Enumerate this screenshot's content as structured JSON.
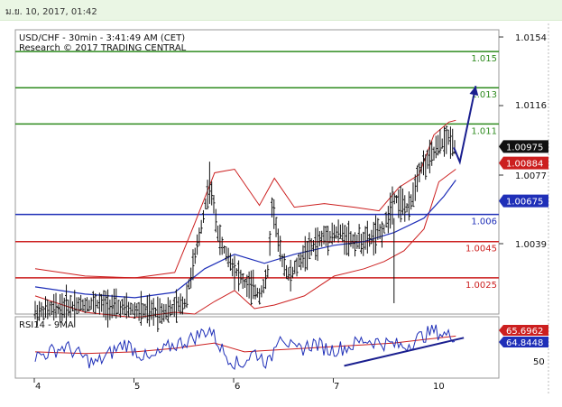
{
  "header": {
    "date_text": "ม.ย. 10, 2017, 01:42"
  },
  "chart_data": [
    {
      "type": "ohlc",
      "title": "USD/CHF - 30min - 3:41:49 AM (CET)",
      "subtitle": "Research © 2017 TRADING CENTRAL",
      "xlabel": "",
      "ylabel": "",
      "ylim": [
        1.0005,
        1.0162
      ],
      "y_ticks": [
        "1.0154",
        "1.0116",
        "1.0077",
        "1.0039"
      ],
      "x_ticks": [
        {
          "label": "4",
          "day": 4
        },
        {
          "label": "5",
          "day": 5
        },
        {
          "label": "6",
          "day": 6
        },
        {
          "label": "7",
          "day": 7
        },
        {
          "label": "10",
          "day": 10
        }
      ],
      "price_path": [
        [
          4.0,
          1.0006
        ],
        [
          4.3,
          1.0009
        ],
        [
          4.6,
          1.0011
        ],
        [
          4.9,
          1.0008
        ],
        [
          5.15,
          1.0006
        ],
        [
          5.35,
          1.0007
        ],
        [
          5.5,
          1.0011
        ],
        [
          5.62,
          1.004
        ],
        [
          5.75,
          1.0078
        ],
        [
          5.85,
          1.0045
        ],
        [
          6.0,
          1.003
        ],
        [
          6.1,
          1.0022
        ],
        [
          6.25,
          1.0016
        ],
        [
          6.33,
          1.0025
        ],
        [
          6.38,
          1.0068
        ],
        [
          6.45,
          1.004
        ],
        [
          6.55,
          1.0025
        ],
        [
          6.7,
          1.0038
        ],
        [
          6.9,
          1.0048
        ],
        [
          7.05,
          1.005
        ],
        [
          7.2,
          1.0045
        ],
        [
          7.35,
          1.0046
        ],
        [
          7.5,
          1.0052
        ],
        [
          7.6,
          1.007
        ],
        [
          7.75,
          1.0062
        ],
        [
          7.85,
          1.0085
        ],
        [
          7.95,
          1.009
        ],
        [
          8.05,
          1.0098
        ],
        [
          8.15,
          1.0102
        ],
        [
          8.22,
          1.0098
        ]
      ],
      "bollinger_upper": [
        [
          4.0,
          1.003
        ],
        [
          4.5,
          1.0026
        ],
        [
          5.0,
          1.0025
        ],
        [
          5.4,
          1.0028
        ],
        [
          5.6,
          1.0055
        ],
        [
          5.8,
          1.0083
        ],
        [
          6.0,
          1.0085
        ],
        [
          6.25,
          1.0065
        ],
        [
          6.4,
          1.008
        ],
        [
          6.6,
          1.0064
        ],
        [
          6.9,
          1.0066
        ],
        [
          7.2,
          1.0064
        ],
        [
          7.45,
          1.0062
        ],
        [
          7.65,
          1.0075
        ],
        [
          7.85,
          1.0082
        ],
        [
          8.0,
          1.0104
        ],
        [
          8.15,
          1.0111
        ],
        [
          8.22,
          1.0112
        ]
      ],
      "bollinger_lower": [
        [
          4.0,
          1.0015
        ],
        [
          4.5,
          1.0006
        ],
        [
          5.0,
          1.0003
        ],
        [
          5.4,
          1.0006
        ],
        [
          5.6,
          1.0005
        ],
        [
          5.8,
          1.0012
        ],
        [
          6.0,
          1.0018
        ],
        [
          6.2,
          1.0008
        ],
        [
          6.4,
          1.001
        ],
        [
          6.7,
          1.0015
        ],
        [
          7.0,
          1.0026
        ],
        [
          7.3,
          1.003
        ],
        [
          7.5,
          1.0034
        ],
        [
          7.7,
          1.004
        ],
        [
          7.9,
          1.0052
        ],
        [
          8.05,
          1.0078
        ],
        [
          8.22,
          1.0085
        ]
      ],
      "moving_average": [
        [
          4.0,
          1.002
        ],
        [
          4.5,
          1.0016
        ],
        [
          5.0,
          1.0014
        ],
        [
          5.4,
          1.0017
        ],
        [
          5.7,
          1.003
        ],
        [
          6.0,
          1.0038
        ],
        [
          6.3,
          1.0033
        ],
        [
          6.6,
          1.0038
        ],
        [
          7.0,
          1.0043
        ],
        [
          7.3,
          1.0045
        ],
        [
          7.6,
          1.005
        ],
        [
          7.9,
          1.0058
        ],
        [
          8.1,
          1.007
        ],
        [
          8.22,
          1.0079
        ]
      ],
      "horizontal_levels": [
        {
          "value": 1.015,
          "label": "1.015",
          "color": "#2e8b1e"
        },
        {
          "value": 1.013,
          "label": "1.013",
          "color": "#2e8b1e"
        },
        {
          "value": 1.011,
          "label": "1.011",
          "color": "#2e8b1e"
        },
        {
          "value": 1.006,
          "label": "1.006",
          "color": "#1f2fb8"
        },
        {
          "value": 1.0045,
          "label": "1.0045",
          "color": "#cc1f1f"
        },
        {
          "value": 1.0025,
          "label": "1.0025",
          "color": "#cc1f1f"
        }
      ],
      "forecast_arrow": [
        [
          8.26,
          1.0089
        ],
        [
          8.42,
          1.0131
        ]
      ],
      "price_tags": [
        {
          "value": 1.00975,
          "label": "1.00975",
          "bg": "#111111",
          "fg": "#ffffff"
        },
        {
          "value": 1.00884,
          "label": "1.00884",
          "bg": "#cc1f1f",
          "fg": "#ffffff"
        },
        {
          "value": 1.00675,
          "label": "1.00675",
          "bg": "#1f2fb8",
          "fg": "#ffffff"
        }
      ],
      "grid": false
    },
    {
      "type": "line",
      "title": "RSI14 - 9MA",
      "ylim": [
        40,
        75
      ],
      "y_ticks": [
        "50"
      ],
      "rsi_path": [
        [
          4.0,
          52
        ],
        [
          4.3,
          58
        ],
        [
          4.6,
          48
        ],
        [
          4.9,
          60
        ],
        [
          5.15,
          50
        ],
        [
          5.35,
          58
        ],
        [
          5.55,
          62
        ],
        [
          5.75,
          68
        ],
        [
          5.9,
          54
        ],
        [
          6.05,
          47
        ],
        [
          6.2,
          55
        ],
        [
          6.35,
          48
        ],
        [
          6.45,
          67
        ],
        [
          6.6,
          55
        ],
        [
          6.8,
          60
        ],
        [
          6.95,
          56
        ],
        [
          7.15,
          58
        ],
        [
          7.3,
          62
        ],
        [
          7.5,
          60
        ],
        [
          7.7,
          58
        ],
        [
          7.85,
          63
        ],
        [
          8.0,
          67
        ],
        [
          8.15,
          64
        ],
        [
          8.22,
          65
        ]
      ],
      "rsi_ma_path": [
        [
          4.0,
          55
        ],
        [
          4.5,
          54
        ],
        [
          5.0,
          55
        ],
        [
          5.4,
          57
        ],
        [
          5.8,
          60
        ],
        [
          6.1,
          55
        ],
        [
          6.4,
          56
        ],
        [
          6.7,
          57
        ],
        [
          7.0,
          58
        ],
        [
          7.3,
          59
        ],
        [
          7.6,
          60
        ],
        [
          7.9,
          62
        ],
        [
          8.22,
          64
        ]
      ],
      "trendline": [
        [
          7.1,
          47
        ],
        [
          8.3,
          63
        ]
      ],
      "price_tags": [
        {
          "value": 65.6962,
          "label": "65.6962",
          "bg": "#cc1f1f",
          "fg": "#ffffff"
        },
        {
          "value": 64.8448,
          "label": "64.8448",
          "bg": "#1f2fb8",
          "fg": "#ffffff"
        }
      ]
    }
  ]
}
